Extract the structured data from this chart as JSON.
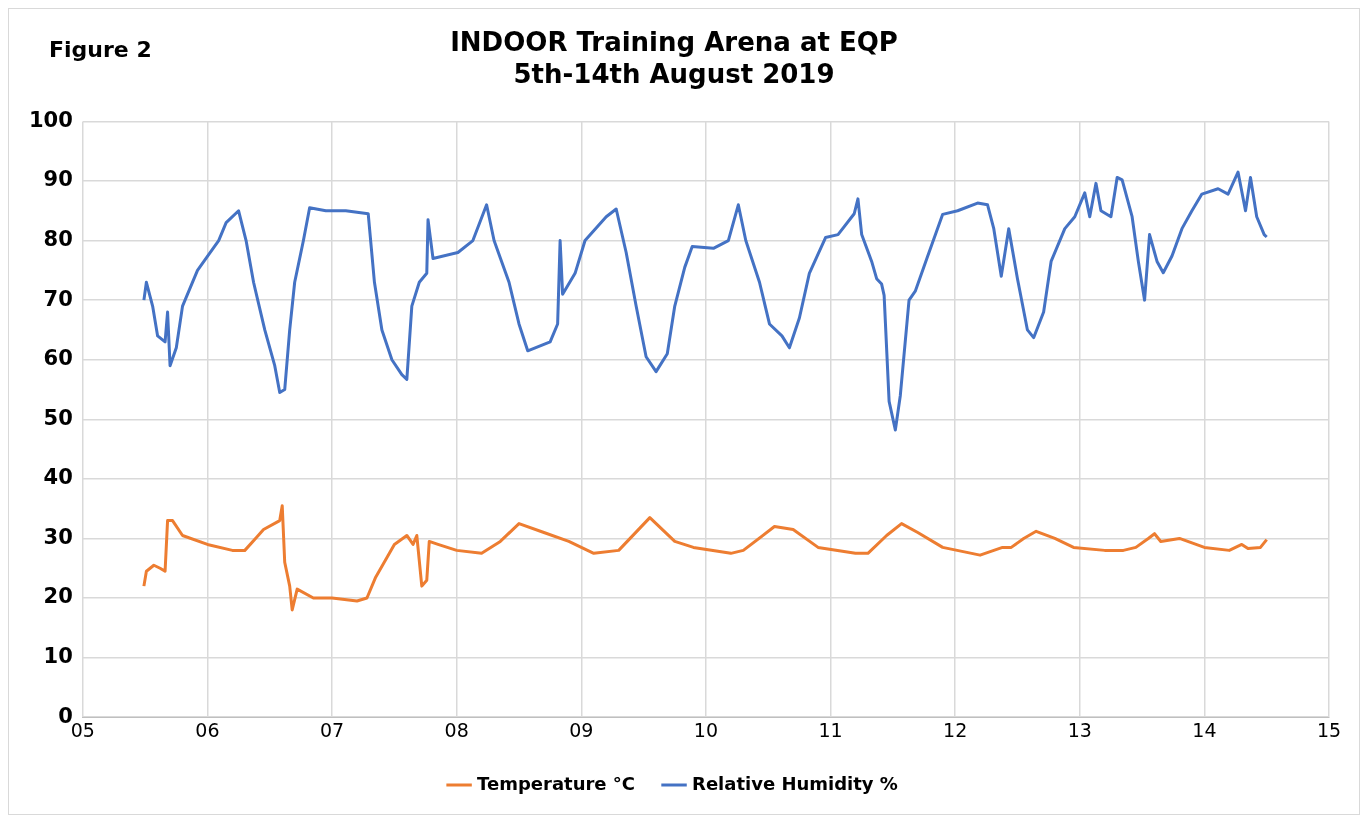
{
  "chart_data": {
    "type": "line",
    "title": "INDOOR Training Arena at EQP",
    "subtitle": "5th-14th August 2019",
    "annotations": [
      "Figure 2"
    ],
    "xlim": [
      5,
      15
    ],
    "xticks": [
      {
        "value": 5,
        "label": "05"
      },
      {
        "value": 6,
        "label": "06"
      },
      {
        "value": 7,
        "label": "07"
      },
      {
        "value": 8,
        "label": "08"
      },
      {
        "value": 9,
        "label": "09"
      },
      {
        "value": 10,
        "label": "10"
      },
      {
        "value": 11,
        "label": "11"
      },
      {
        "value": 12,
        "label": "12"
      },
      {
        "value": 13,
        "label": "13"
      },
      {
        "value": 14,
        "label": "14"
      },
      {
        "value": 15,
        "label": "15"
      }
    ],
    "ylim": [
      0,
      100
    ],
    "yticks": [
      0,
      10,
      20,
      30,
      40,
      50,
      60,
      70,
      80,
      90,
      100
    ],
    "grid": true,
    "legend": "bottom",
    "marker": "none",
    "line_style": "solid",
    "series": [
      {
        "name": "Temperature °C",
        "color": "#ed7d31",
        "x": [
          5.49,
          5.51,
          5.57,
          5.62,
          5.66,
          5.68,
          5.72,
          5.8,
          6.0,
          6.2,
          6.3,
          6.45,
          6.58,
          6.6,
          6.62,
          6.66,
          6.68,
          6.72,
          6.85,
          7.0,
          7.2,
          7.28,
          7.35,
          7.5,
          7.6,
          7.65,
          7.68,
          7.72,
          7.76,
          7.78,
          7.85,
          8.0,
          8.2,
          8.35,
          8.5,
          8.7,
          8.9,
          9.1,
          9.3,
          9.55,
          9.75,
          9.9,
          10.2,
          10.3,
          10.55,
          10.7,
          10.9,
          11.2,
          11.3,
          11.45,
          11.57,
          11.7,
          11.9,
          12.2,
          12.38,
          12.45,
          12.55,
          12.65,
          12.8,
          12.95,
          13.2,
          13.35,
          13.45,
          13.55,
          13.6,
          13.65,
          13.8,
          14.0,
          14.2,
          14.3,
          14.35,
          14.45,
          14.5
        ],
        "values": [
          22,
          24.5,
          25.5,
          25,
          24.5,
          33,
          33,
          30.5,
          29,
          28,
          28,
          31.5,
          33,
          35.5,
          26,
          22,
          18,
          21.5,
          20,
          20,
          19.5,
          20,
          23.5,
          29,
          30.5,
          29,
          30.5,
          22,
          23,
          29.5,
          29,
          28,
          27.5,
          29.5,
          32.5,
          31,
          29.5,
          27.5,
          28,
          33.5,
          29.5,
          28.5,
          27.5,
          28,
          32,
          31.5,
          28.5,
          27.5,
          27.5,
          30.5,
          32.5,
          31,
          28.5,
          27.2,
          28.5,
          28.5,
          30,
          31.2,
          30,
          28.5,
          28,
          28,
          28.5,
          30,
          30.8,
          29.5,
          30,
          28.5,
          28,
          29,
          28.3,
          28.5,
          29.8
        ]
      },
      {
        "name": "Relative Humidity %",
        "color": "#4472c4",
        "x": [
          5.49,
          5.51,
          5.56,
          5.6,
          5.66,
          5.68,
          5.7,
          5.75,
          5.8,
          5.92,
          6.09,
          6.15,
          6.25,
          6.31,
          6.37,
          6.46,
          6.54,
          6.58,
          6.62,
          6.66,
          6.7,
          6.77,
          6.82,
          6.95,
          7.11,
          7.29,
          7.34,
          7.4,
          7.48,
          7.56,
          7.6,
          7.64,
          7.7,
          7.76,
          7.77,
          7.81,
          8.01,
          8.13,
          8.24,
          8.3,
          8.42,
          8.5,
          8.57,
          8.75,
          8.81,
          8.83,
          8.85,
          8.95,
          9.03,
          9.2,
          9.28,
          9.36,
          9.44,
          9.52,
          9.6,
          9.69,
          9.75,
          9.83,
          9.89,
          10.06,
          10.18,
          10.26,
          10.32,
          10.43,
          10.51,
          10.61,
          10.67,
          10.75,
          10.83,
          10.96,
          11.06,
          11.19,
          11.22,
          11.25,
          11.33,
          11.37,
          11.41,
          11.43,
          11.47,
          11.52,
          11.56,
          11.63,
          11.68,
          11.78,
          11.9,
          12.02,
          12.18,
          12.26,
          12.31,
          12.37,
          12.43,
          12.5,
          12.58,
          12.63,
          12.71,
          12.77,
          12.88,
          12.96,
          13.04,
          13.08,
          13.13,
          13.17,
          13.25,
          13.3,
          13.34,
          13.42,
          13.47,
          13.52,
          13.56,
          13.62,
          13.67,
          13.74,
          13.82,
          13.9,
          13.98,
          14.11,
          14.19,
          14.27,
          14.33,
          14.37,
          14.42,
          14.48,
          14.5
        ],
        "values": [
          70,
          73,
          69,
          64,
          63,
          68,
          59,
          62,
          69,
          75,
          80,
          83,
          85,
          80,
          73,
          65,
          59,
          54.5,
          55,
          65,
          73,
          80,
          85.5,
          85,
          85,
          84.5,
          73,
          65,
          60,
          57.5,
          56.7,
          69,
          73,
          74.5,
          83.5,
          77,
          78,
          80,
          86,
          80,
          73,
          66,
          61.5,
          63,
          66,
          80,
          71,
          74.5,
          80,
          84,
          85.3,
          78,
          69,
          60.5,
          58,
          61,
          69,
          75.5,
          79,
          78.7,
          80,
          86,
          80,
          73,
          66,
          64,
          62,
          67,
          74.5,
          80.5,
          81,
          84.5,
          87,
          81,
          76.5,
          73.6,
          72.7,
          70.8,
          53,
          48.2,
          54,
          70,
          71.5,
          77.4,
          84.4,
          85,
          86.3,
          86,
          82,
          74,
          82,
          73.6,
          65,
          63.7,
          68,
          76.5,
          82,
          84,
          88,
          84,
          89.6,
          85,
          84,
          90.6,
          90.2,
          84,
          76.5,
          70,
          81,
          76.5,
          74.6,
          77.4,
          82,
          85,
          87.8,
          88.7,
          87.8,
          91.5,
          85,
          90.6,
          84,
          81,
          80.6
        ]
      }
    ]
  }
}
